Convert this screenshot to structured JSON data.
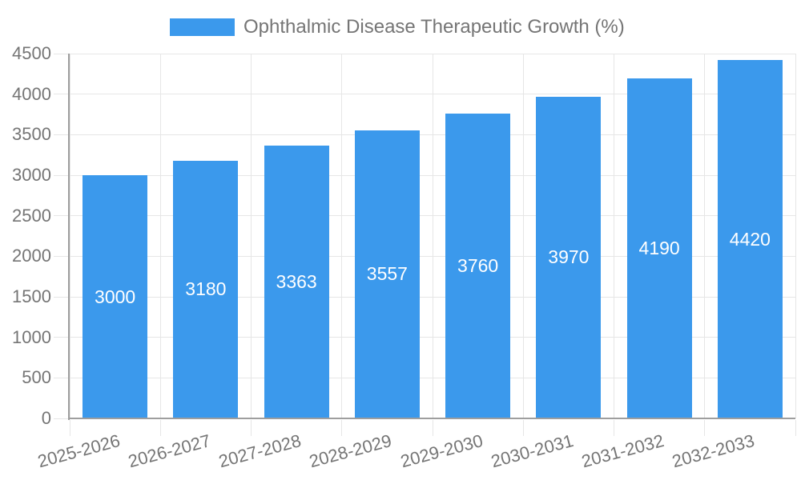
{
  "chart_data": {
    "type": "bar",
    "title": "Ophthalmic Disease Therapeutic Growth (%)",
    "xlabel": "",
    "ylabel": "",
    "categories": [
      "2025-2026",
      "2026-2027",
      "2027-2028",
      "2028-2029",
      "2029-2030",
      "2030-2031",
      "2031-2032",
      "2032-2033"
    ],
    "values": [
      3000,
      3180,
      3363,
      3557,
      3760,
      3970,
      4190,
      4420
    ],
    "bar_labels": [
      "3000",
      "3180",
      "3363",
      "3557",
      "3760",
      "3970",
      "4190",
      "4420"
    ],
    "ylim": [
      0,
      4500
    ],
    "y_ticks": [
      0,
      500,
      1000,
      1500,
      2000,
      2500,
      3000,
      3500,
      4000,
      4500
    ],
    "legend_position": "top",
    "grid": true,
    "value_labels_position": "center-of-bar",
    "x_label_rotation_deg": -15,
    "colors": {
      "bar": "#3B99EC",
      "axis_text": "#757575",
      "grid_line": "#E6E6E6",
      "axis_line": "#9E9E9E",
      "value_label": "#FFFFFF",
      "background": "#FFFFFF"
    }
  }
}
